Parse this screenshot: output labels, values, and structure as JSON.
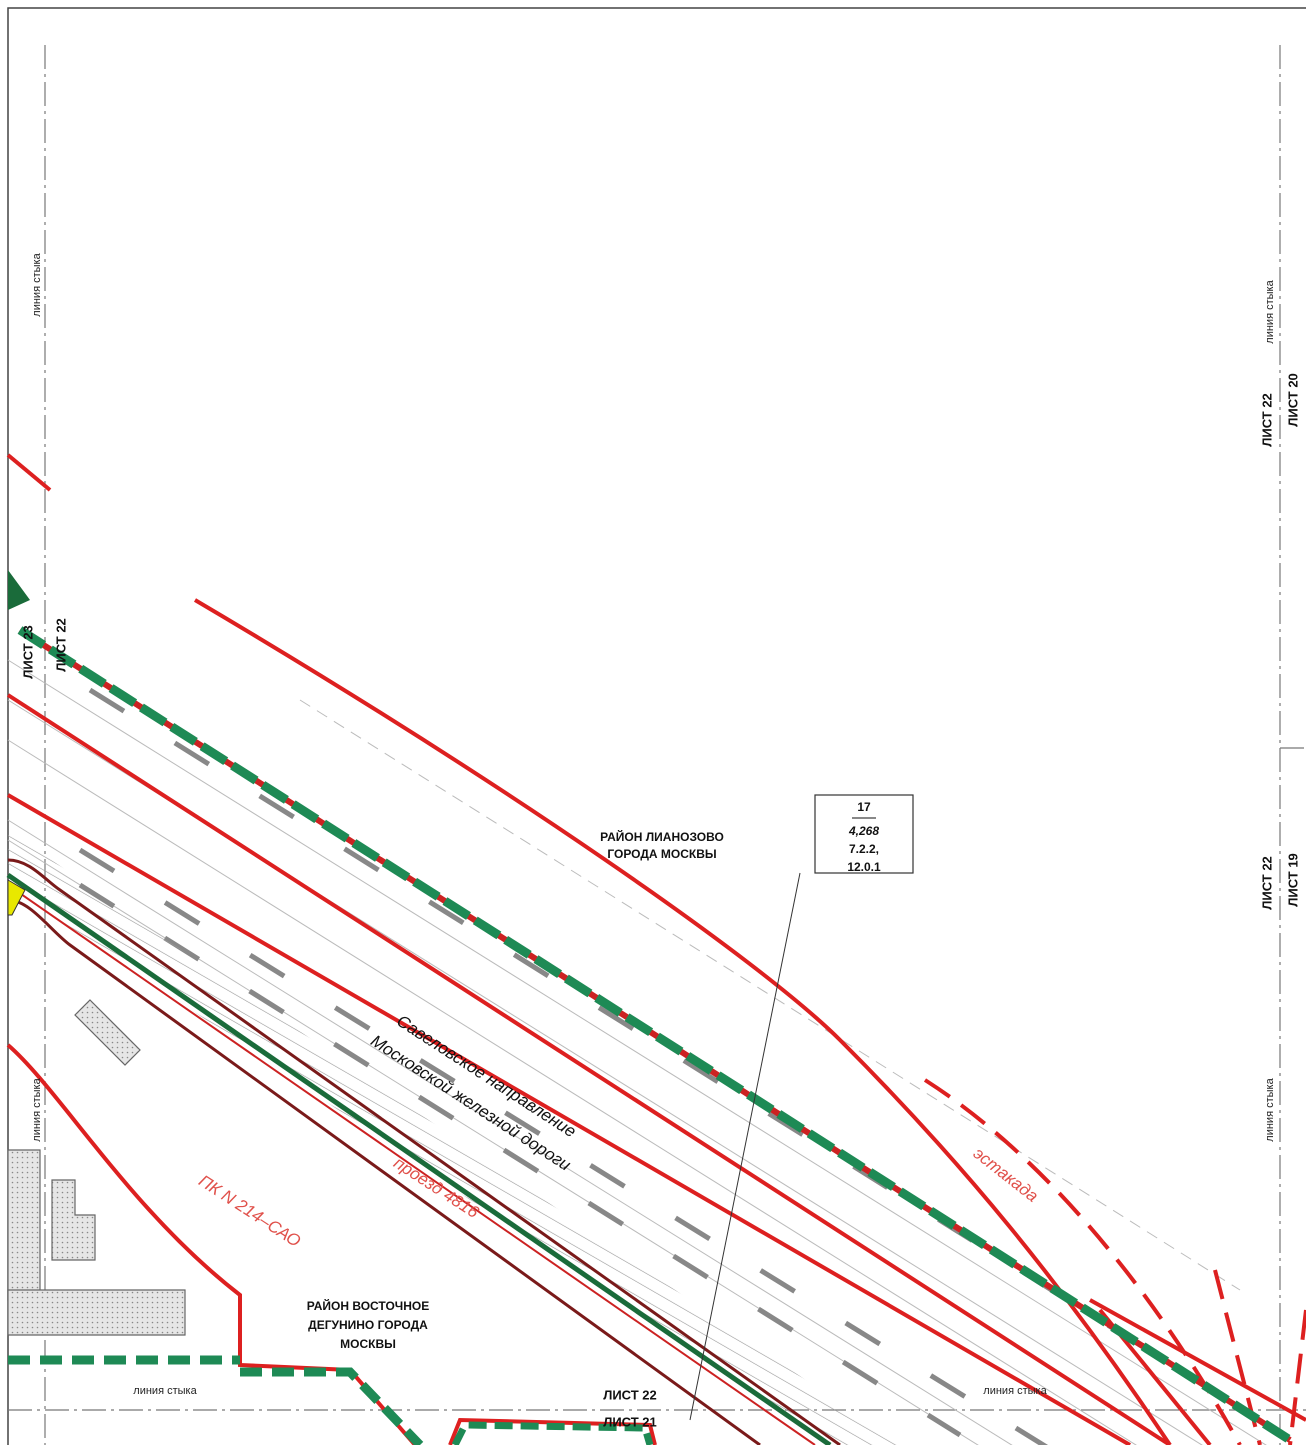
{
  "joint_labels": [
    "линия стыка",
    "линия стыка",
    "линия стыка",
    "линия стыка",
    "линия стыка",
    "линия стыка"
  ],
  "sheet_labels": {
    "right_upper": [
      "ЛИСТ 22",
      "ЛИСТ 20"
    ],
    "right_lower": [
      "ЛИСТ 22",
      "ЛИСТ 19"
    ],
    "left": [
      "ЛИСТ 23",
      "ЛИСТ 22"
    ],
    "bottom": [
      "ЛИСТ 22",
      "ЛИСТ 21"
    ]
  },
  "districts": [
    {
      "lines": [
        "РАЙОН ЛИАНОЗОВО",
        "ГОРОДА МОСКВЫ"
      ]
    },
    {
      "lines": [
        "РАЙОН ВОСТОЧНОЕ",
        "ДЕГУНИНО ГОРОДА",
        "МОСКВЫ"
      ]
    }
  ],
  "callout": {
    "number": "17",
    "area": "4,268",
    "codes": [
      "7.2.2,",
      "12.0.1"
    ]
  },
  "railway": [
    "Савеловское направление",
    "Московской железной дороги"
  ],
  "annotations": {
    "picket": "ПК N 214–САО",
    "overpass": "эстакада",
    "passage": "проезд 4816"
  }
}
